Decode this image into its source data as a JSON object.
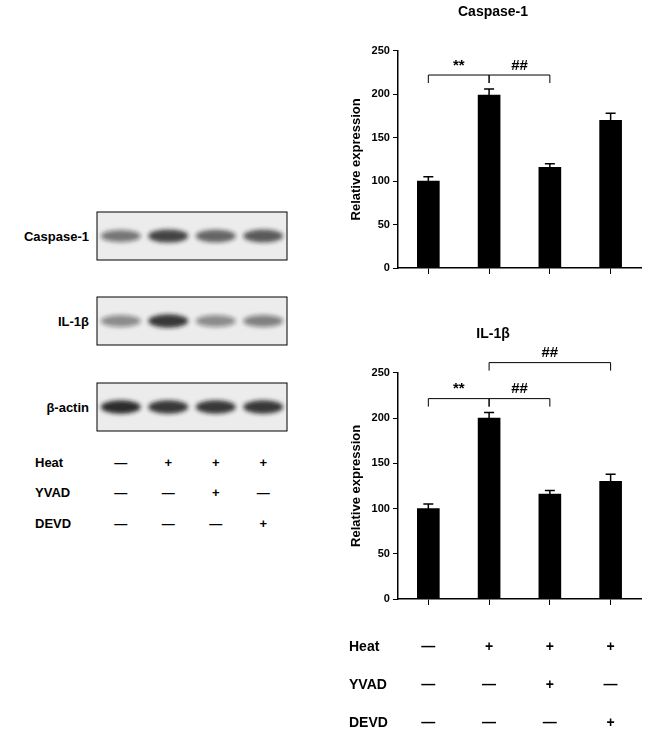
{
  "chart_data": [
    {
      "type": "bar",
      "title": "Caspase-1",
      "y_label": "Relative expression",
      "categories": [
        null,
        null,
        null,
        null
      ],
      "values": [
        100,
        199,
        116,
        170
      ],
      "errors": [
        5,
        7,
        4,
        8
      ],
      "color": "#000000",
      "ylim": [
        0,
        250
      ],
      "yticks": [
        0,
        50,
        100,
        150,
        200,
        250
      ],
      "grid": false,
      "tick_labels": "y",
      "annotations": [
        {
          "text": "**",
          "from": 0,
          "to": 1
        },
        {
          "text": "##",
          "from": 1,
          "to": 2
        }
      ]
    },
    {
      "type": "bar",
      "title": "IL-1β",
      "y_label": "Relative expression",
      "categories": [
        null,
        null,
        null,
        null
      ],
      "values": [
        100,
        200,
        116,
        130
      ],
      "errors": [
        5,
        6,
        4,
        8
      ],
      "color": "#000000",
      "ylim": [
        0,
        250
      ],
      "yticks": [
        0,
        50,
        100,
        150,
        200,
        250
      ],
      "grid": false,
      "tick_labels": "y",
      "annotations": [
        {
          "text": "**",
          "from": 0,
          "to": 1
        },
        {
          "text": "##",
          "from": 1,
          "to": 2
        },
        {
          "text": "##",
          "from": 1,
          "to": 3
        }
      ],
      "conditions": [
        {
          "label": "Heat",
          "marks": [
            "—",
            "+",
            "+",
            "+"
          ]
        },
        {
          "label": "YVAD",
          "marks": [
            "—",
            "—",
            "+",
            "—"
          ]
        },
        {
          "label": "DEVD",
          "marks": [
            "—",
            "—",
            "—",
            "+"
          ]
        }
      ]
    }
  ],
  "blot": {
    "bands": [
      {
        "label": "Caspase-1",
        "intensity": [
          0.55,
          0.8,
          0.65,
          0.7
        ]
      },
      {
        "label": "IL-1β",
        "intensity": [
          0.45,
          0.85,
          0.45,
          0.5
        ]
      },
      {
        "label": "β-actin",
        "intensity": [
          0.9,
          0.85,
          0.85,
          0.85
        ]
      }
    ],
    "conditions": [
      {
        "label": "Heat",
        "marks": [
          "—",
          "+",
          "+",
          "+"
        ]
      },
      {
        "label": "YVAD",
        "marks": [
          "—",
          "—",
          "+",
          "—"
        ]
      },
      {
        "label": "DEVD",
        "marks": [
          "—",
          "—",
          "—",
          "+"
        ]
      }
    ]
  }
}
